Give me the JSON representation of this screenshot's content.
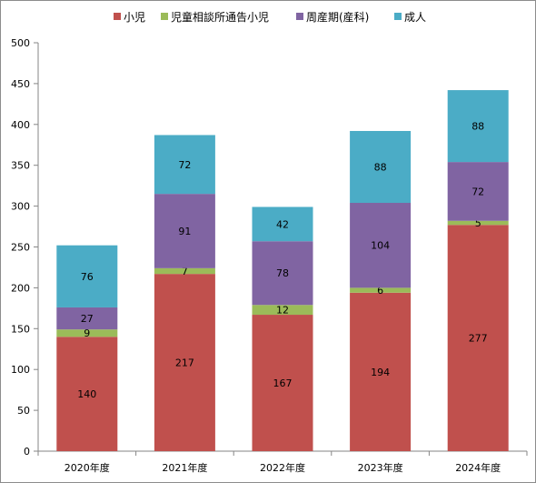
{
  "chart_data": {
    "type": "bar",
    "stacked": true,
    "categories": [
      "2020年度",
      "2021年度",
      "2022年度",
      "2023年度",
      "2024年度"
    ],
    "series": [
      {
        "name": "小児",
        "color": "#c0504d",
        "values": [
          140,
          217,
          167,
          194,
          277
        ]
      },
      {
        "name": "児童相談所通告小児",
        "color": "#9bbb59",
        "values": [
          9,
          7,
          12,
          6,
          5
        ]
      },
      {
        "name": "周産期(産科)",
        "color": "#8064a2",
        "values": [
          27,
          91,
          78,
          104,
          72
        ]
      },
      {
        "name": "成人",
        "color": "#4bacc6",
        "values": [
          76,
          72,
          42,
          88,
          88
        ]
      }
    ],
    "ylim": [
      0,
      500
    ],
    "yticks": [
      "0",
      "50",
      "100",
      "150",
      "200",
      "250",
      "300",
      "350",
      "400",
      "450",
      "500"
    ],
    "grid": false,
    "legend_position": "top"
  }
}
